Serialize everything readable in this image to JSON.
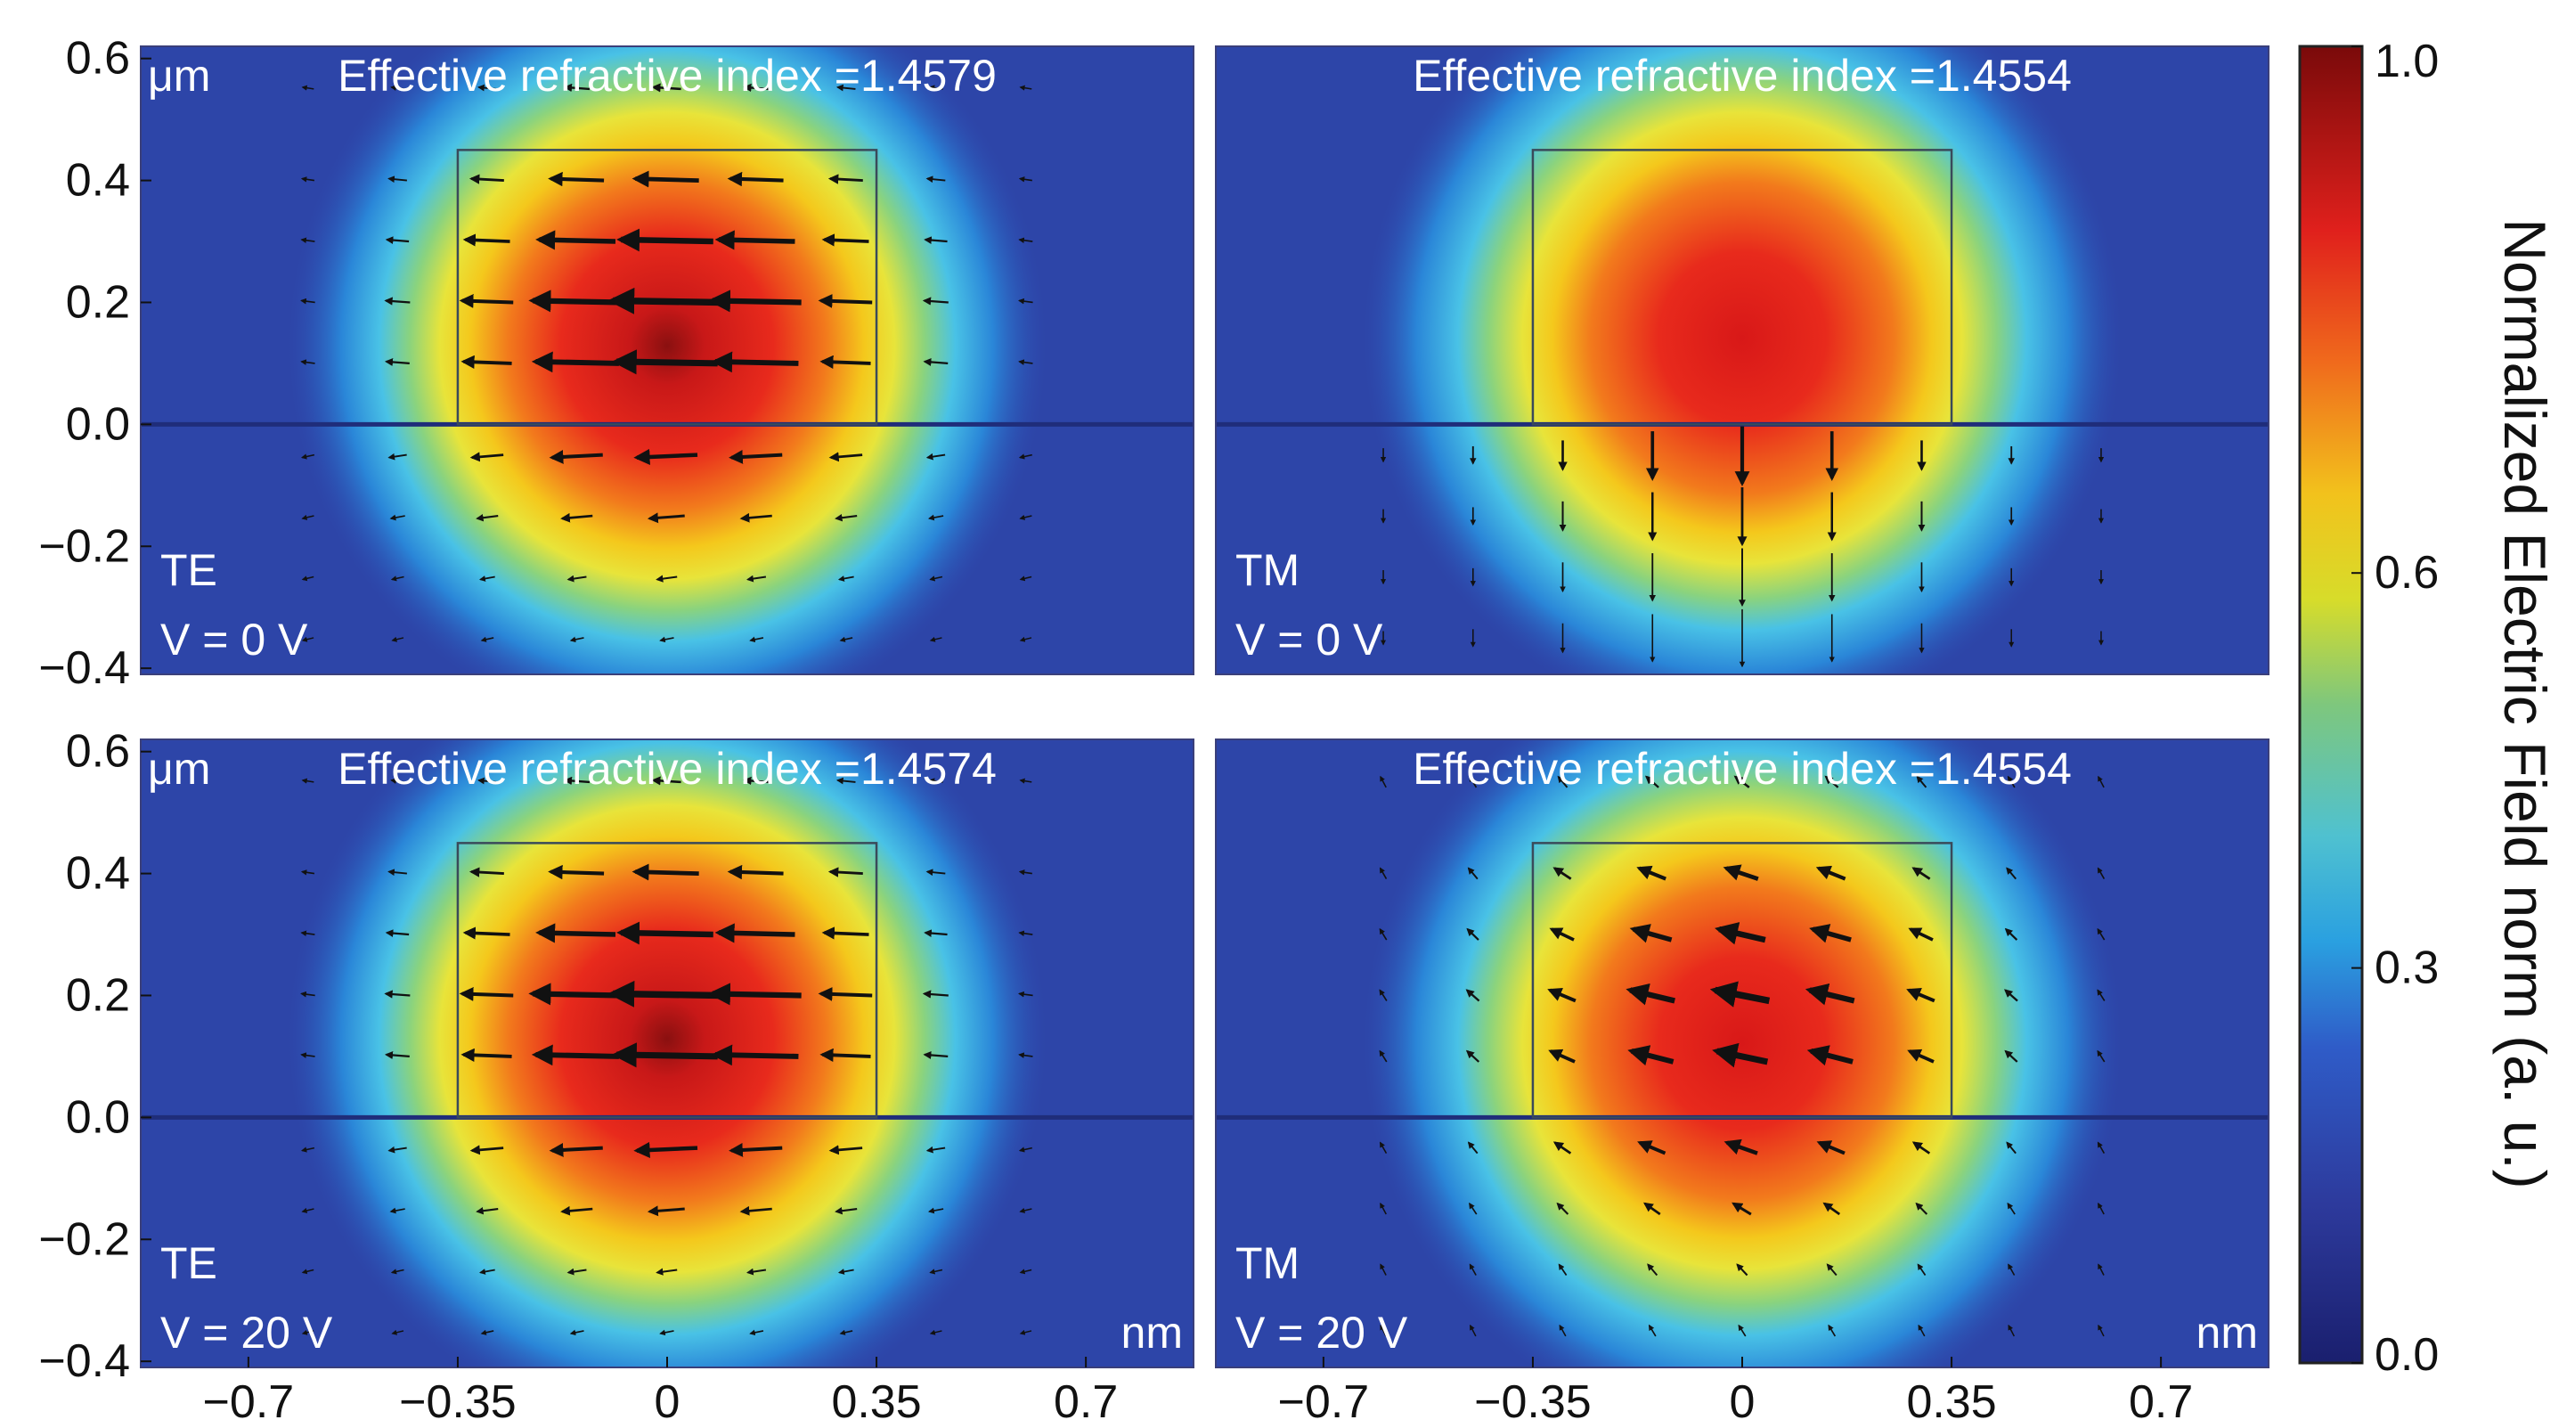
{
  "colors": {
    "accent_dark_red": "#7a0a0a",
    "bg_blue": "#2d3a9c"
  },
  "chart_data": {
    "type": "heatmap",
    "title": "",
    "x_ticks": [
      "−0.7",
      "−0.35",
      "0",
      "0.35",
      "0.7"
    ],
    "x_tick_values": [
      -0.7,
      -0.35,
      0,
      0.35,
      0.7
    ],
    "y_ticks": [
      "0.6",
      "0.4",
      "0.2",
      "0.0",
      "−0.2",
      "−0.4"
    ],
    "y_tick_values": [
      0.6,
      0.4,
      0.2,
      0.0,
      -0.2,
      -0.4
    ],
    "xlim": [
      -0.88,
      0.88
    ],
    "ylim": [
      -0.41,
      0.62
    ],
    "y_unit_label": "μm",
    "x_unit_label": "nm",
    "colorbar": {
      "label": "Normalized Electric Field norm (a. u.)",
      "ticks": [
        "1.0",
        "0.6",
        "0.3",
        "0.0"
      ],
      "tick_values": [
        1.0,
        0.6,
        0.3,
        0.0
      ],
      "range": [
        0.0,
        1.0
      ]
    },
    "waveguide": {
      "x_range": [
        -0.35,
        0.35
      ],
      "y_range": [
        0.0,
        0.45
      ]
    },
    "panels": [
      {
        "id": "te-0v",
        "mode": "TE",
        "voltage": "V = 0 V",
        "neff_label": "Effective refractive index =1.4579",
        "peak_center": [
          0.0,
          0.18
        ],
        "arrow_direction": "horizontal-left",
        "show_y_unit": true,
        "show_x_unit": false
      },
      {
        "id": "tm-0v",
        "mode": "TM",
        "voltage": "V = 0 V",
        "neff_label": "Effective refractive index =1.4554",
        "peak_center": [
          0.0,
          0.2
        ],
        "arrow_direction": "vertical-down",
        "show_y_unit": false,
        "show_x_unit": false
      },
      {
        "id": "te-20v",
        "mode": "TE",
        "voltage": "V = 20 V",
        "neff_label": "Effective refractive index =1.4574",
        "peak_center": [
          0.0,
          0.18
        ],
        "arrow_direction": "horizontal-left",
        "show_y_unit": true,
        "show_x_unit": true
      },
      {
        "id": "tm-20v",
        "mode": "TM",
        "voltage": "V = 20 V",
        "neff_label": "Effective refractive index =1.4554",
        "peak_center": [
          0.0,
          0.18
        ],
        "arrow_direction": "diagonal-left",
        "show_y_unit": false,
        "show_x_unit": true
      }
    ]
  }
}
